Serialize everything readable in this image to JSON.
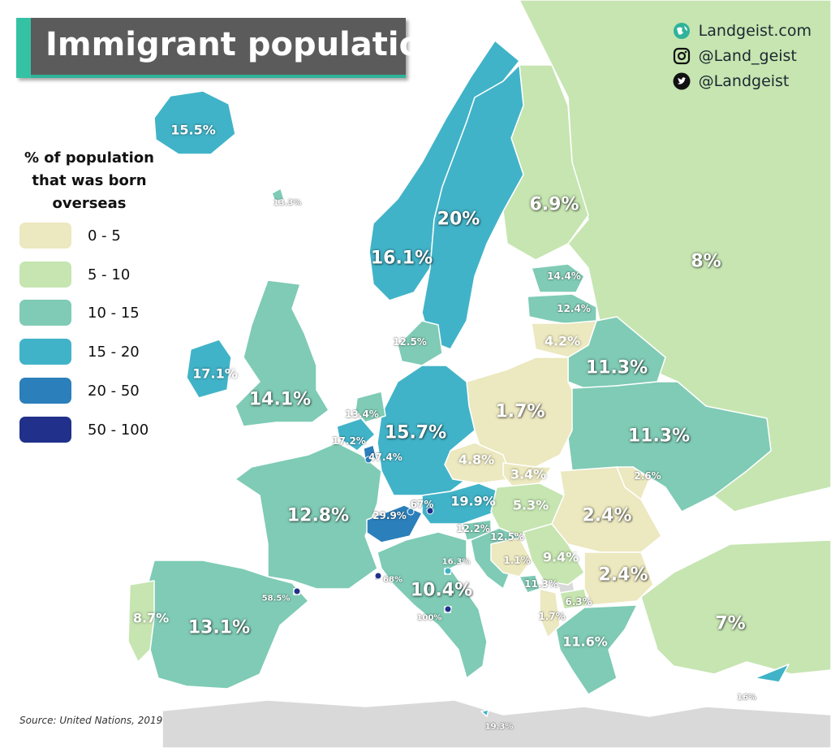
{
  "title": "Immigrant population",
  "social": [
    {
      "icon": "globe-icon",
      "text": "Landgeist.com"
    },
    {
      "icon": "instagram-icon",
      "text": "@Land_geist"
    },
    {
      "icon": "twitter-icon",
      "text": "@Landgeist"
    }
  ],
  "legend": {
    "title_lines": [
      "% of population",
      "that was born",
      "overseas"
    ],
    "items": [
      {
        "label": "0 - 5",
        "color": "#ece8bf"
      },
      {
        "label": "5 - 10",
        "color": "#c6e5b1"
      },
      {
        "label": "10 - 15",
        "color": "#7fcbb5"
      },
      {
        "label": "15 - 20",
        "color": "#41b3c8"
      },
      {
        "label": "20 - 50",
        "color": "#2b7fba"
      },
      {
        "label": "50 - 100",
        "color": "#21308a"
      }
    ]
  },
  "source": "Source: United Nations, 2019",
  "colors": {
    "sea": "#ffffff",
    "no_data": "#d9d9d9",
    "border": "#ffffff"
  },
  "regions": [
    {
      "name": "Iceland",
      "label": "15.5%",
      "bin": "15 - 20"
    },
    {
      "name": "Faroe Islands",
      "label": "13.3%",
      "bin": "10 - 15"
    },
    {
      "name": "Norway",
      "label": "16.1%",
      "bin": "15 - 20"
    },
    {
      "name": "Sweden",
      "label": "20%",
      "bin": "15 - 20"
    },
    {
      "name": "Finland",
      "label": "6.9%",
      "bin": "5 - 10"
    },
    {
      "name": "Russia",
      "label": "8%",
      "bin": "5 - 10"
    },
    {
      "name": "Estonia",
      "label": "14.4%",
      "bin": "10 - 15"
    },
    {
      "name": "Latvia",
      "label": "12.4%",
      "bin": "10 - 15"
    },
    {
      "name": "Lithuania",
      "label": "4.2%",
      "bin": "0 - 5"
    },
    {
      "name": "Denmark",
      "label": "12.5%",
      "bin": "10 - 15"
    },
    {
      "name": "Ireland",
      "label": "17.1%",
      "bin": "15 - 20"
    },
    {
      "name": "United Kingdom",
      "label": "14.1%",
      "bin": "10 - 15"
    },
    {
      "name": "Netherlands",
      "label": "13.4%",
      "bin": "10 - 15"
    },
    {
      "name": "Belgium",
      "label": "17.2%",
      "bin": "15 - 20"
    },
    {
      "name": "Luxembourg",
      "label": "47.4%",
      "bin": "20 - 50"
    },
    {
      "name": "Germany",
      "label": "15.7%",
      "bin": "15 - 20"
    },
    {
      "name": "Poland",
      "label": "1.7%",
      "bin": "0 - 5"
    },
    {
      "name": "Belarus",
      "label": "11.3%",
      "bin": "10 - 15"
    },
    {
      "name": "Ukraine",
      "label": "11.3%",
      "bin": "10 - 15"
    },
    {
      "name": "Moldova",
      "label": "2.6%",
      "bin": "0 - 5"
    },
    {
      "name": "Czechia",
      "label": "4.8%",
      "bin": "0 - 5"
    },
    {
      "name": "Slovakia",
      "label": "3.4%",
      "bin": "0 - 5"
    },
    {
      "name": "Austria",
      "label": "19.9%",
      "bin": "15 - 20"
    },
    {
      "name": "Liechtenstein",
      "label": "67%",
      "bin": "50 - 100"
    },
    {
      "name": "Switzerland",
      "label": "29.9%",
      "bin": "20 - 50"
    },
    {
      "name": "France",
      "label": "12.8%",
      "bin": "10 - 15"
    },
    {
      "name": "Hungary",
      "label": "5.3%",
      "bin": "5 - 10"
    },
    {
      "name": "Romania",
      "label": "2.4%",
      "bin": "0 - 5"
    },
    {
      "name": "Slovenia",
      "label": "12.2%",
      "bin": "10 - 15"
    },
    {
      "name": "Croatia",
      "label": "12.5%",
      "bin": "10 - 15"
    },
    {
      "name": "San Marino",
      "label": "16.3%",
      "bin": "15 - 20"
    },
    {
      "name": "Monaco",
      "label": "68%",
      "bin": "50 - 100"
    },
    {
      "name": "Andorra",
      "label": "58.5%",
      "bin": "50 - 100"
    },
    {
      "name": "Vatican City",
      "label": "100%",
      "bin": "50 - 100"
    },
    {
      "name": "Bosnia and Herzegovina",
      "label": "1.1%",
      "bin": "0 - 5"
    },
    {
      "name": "Serbia",
      "label": "9.4%",
      "bin": "5 - 10"
    },
    {
      "name": "Bulgaria",
      "label": "2.4%",
      "bin": "0 - 5"
    },
    {
      "name": "Montenegro",
      "label": "11.3%",
      "bin": "10 - 15"
    },
    {
      "name": "North Macedonia",
      "label": "6.3%",
      "bin": "5 - 10"
    },
    {
      "name": "Albania",
      "label": "1.7%",
      "bin": "0 - 5"
    },
    {
      "name": "Greece",
      "label": "11.6%",
      "bin": "10 - 15"
    },
    {
      "name": "Italy",
      "label": "10.4%",
      "bin": "10 - 15"
    },
    {
      "name": "Malta",
      "label": "19.3%",
      "bin": "15 - 20"
    },
    {
      "name": "Turkey",
      "label": "7%",
      "bin": "5 - 10"
    },
    {
      "name": "Cyprus",
      "label": "16%",
      "bin": "15 - 20"
    },
    {
      "name": "Spain",
      "label": "13.1%",
      "bin": "10 - 15"
    },
    {
      "name": "Portugal",
      "label": "8.7%",
      "bin": "5 - 10"
    }
  ]
}
